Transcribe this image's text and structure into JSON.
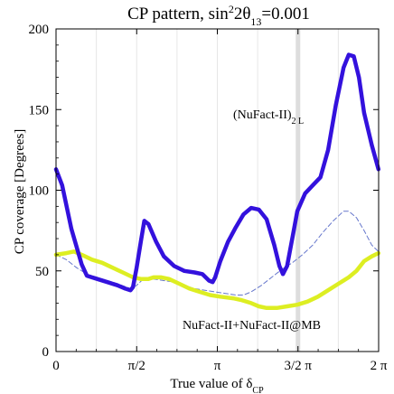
{
  "chart_data": {
    "type": "line",
    "title_main": "CP pattern, sin",
    "title_sup": "2",
    "title_mid": "2θ",
    "title_sub": "13",
    "title_end": "=0.001",
    "xlabel_main": "True value of δ",
    "xlabel_sub": "CP",
    "ylabel": "CP coverage [Degrees]",
    "xlim": [
      0,
      6.2832
    ],
    "ylim": [
      0,
      200
    ],
    "grid": false,
    "y_ticks": [
      {
        "value": 0,
        "label": "0"
      },
      {
        "value": 50,
        "label": "50"
      },
      {
        "value": 100,
        "label": "100"
      },
      {
        "value": 150,
        "label": "150"
      },
      {
        "value": 200,
        "label": "200"
      }
    ],
    "x_ticks": [
      {
        "value": 0,
        "label": "0"
      },
      {
        "value": 1.5708,
        "label": "π/2"
      },
      {
        "value": 3.1416,
        "label": "π"
      },
      {
        "value": 4.7124,
        "label": "3/2 π"
      },
      {
        "value": 6.2832,
        "label": "2 π"
      }
    ],
    "x_guides": [
      0.7854,
      1.5708,
      2.3562,
      3.1416,
      3.927,
      4.7124,
      5.4978
    ],
    "highlight_x": 4.7124,
    "series": [
      {
        "key": "nufact2_2l",
        "name_main": "(NuFact-II)",
        "name_sub": "2 L",
        "color": "#3311dd",
        "style": "thick",
        "points": [
          [
            0,
            113
          ],
          [
            0.12,
            103
          ],
          [
            0.3,
            76
          ],
          [
            0.5,
            54
          ],
          [
            0.6,
            47
          ],
          [
            0.8,
            45
          ],
          [
            1.0,
            43
          ],
          [
            1.2,
            41
          ],
          [
            1.35,
            39
          ],
          [
            1.45,
            38
          ],
          [
            1.5,
            40
          ],
          [
            1.57,
            52
          ],
          [
            1.65,
            68
          ],
          [
            1.72,
            81
          ],
          [
            1.8,
            79
          ],
          [
            1.95,
            68
          ],
          [
            2.1,
            59
          ],
          [
            2.3,
            53
          ],
          [
            2.5,
            50
          ],
          [
            2.7,
            49
          ],
          [
            2.85,
            48
          ],
          [
            2.98,
            44
          ],
          [
            3.05,
            43
          ],
          [
            3.1,
            46
          ],
          [
            3.2,
            56
          ],
          [
            3.35,
            68
          ],
          [
            3.5,
            77
          ],
          [
            3.65,
            85
          ],
          [
            3.8,
            89
          ],
          [
            3.95,
            88
          ],
          [
            4.1,
            82
          ],
          [
            4.25,
            66
          ],
          [
            4.35,
            53
          ],
          [
            4.42,
            48
          ],
          [
            4.5,
            53
          ],
          [
            4.6,
            70
          ],
          [
            4.7,
            87
          ],
          [
            4.85,
            98
          ],
          [
            5.0,
            103
          ],
          [
            5.15,
            108
          ],
          [
            5.3,
            125
          ],
          [
            5.45,
            153
          ],
          [
            5.6,
            176
          ],
          [
            5.7,
            184
          ],
          [
            5.8,
            183
          ],
          [
            5.9,
            170
          ],
          [
            6.0,
            148
          ],
          [
            6.15,
            128
          ],
          [
            6.28,
            113
          ]
        ]
      },
      {
        "key": "combined",
        "name_main": "NuFact-II+NuFact-II@MB",
        "name_sub": "",
        "color": "#ddee22",
        "style": "thick",
        "points": [
          [
            0,
            60
          ],
          [
            0.2,
            61
          ],
          [
            0.35,
            62
          ],
          [
            0.5,
            60
          ],
          [
            0.7,
            57
          ],
          [
            0.9,
            55
          ],
          [
            1.1,
            52
          ],
          [
            1.3,
            49
          ],
          [
            1.5,
            46
          ],
          [
            1.65,
            45
          ],
          [
            1.8,
            45
          ],
          [
            1.9,
            46
          ],
          [
            2.05,
            46
          ],
          [
            2.2,
            45
          ],
          [
            2.4,
            42
          ],
          [
            2.6,
            39
          ],
          [
            2.8,
            37
          ],
          [
            3.0,
            35
          ],
          [
            3.2,
            34
          ],
          [
            3.45,
            33
          ],
          [
            3.6,
            32
          ],
          [
            3.8,
            30
          ],
          [
            3.95,
            28
          ],
          [
            4.1,
            27
          ],
          [
            4.3,
            27
          ],
          [
            4.5,
            28
          ],
          [
            4.7,
            29
          ],
          [
            4.9,
            31
          ],
          [
            5.1,
            34
          ],
          [
            5.3,
            38
          ],
          [
            5.5,
            42
          ],
          [
            5.7,
            46
          ],
          [
            5.85,
            50
          ],
          [
            6.0,
            56
          ],
          [
            6.15,
            59
          ],
          [
            6.28,
            61
          ]
        ]
      },
      {
        "key": "reference",
        "name_main": "",
        "name_sub": "",
        "color": "#6677cc",
        "style": "dashed",
        "points": [
          [
            0,
            60
          ],
          [
            0.2,
            57
          ],
          [
            0.4,
            52
          ],
          [
            0.6,
            48
          ],
          [
            0.8,
            46
          ],
          [
            1.0,
            44
          ],
          [
            1.2,
            42
          ],
          [
            1.45,
            39
          ],
          [
            1.57,
            41
          ],
          [
            1.7,
            45
          ],
          [
            1.9,
            45
          ],
          [
            2.1,
            44
          ],
          [
            2.3,
            43
          ],
          [
            2.5,
            41
          ],
          [
            2.7,
            39
          ],
          [
            2.9,
            38
          ],
          [
            3.1,
            37
          ],
          [
            3.3,
            36
          ],
          [
            3.5,
            35
          ],
          [
            3.65,
            35
          ],
          [
            3.8,
            37
          ],
          [
            4.0,
            41
          ],
          [
            4.2,
            46
          ],
          [
            4.4,
            51
          ],
          [
            4.6,
            55
          ],
          [
            4.8,
            60
          ],
          [
            5.0,
            66
          ],
          [
            5.2,
            74
          ],
          [
            5.4,
            81
          ],
          [
            5.6,
            87
          ],
          [
            5.7,
            87
          ],
          [
            5.85,
            83
          ],
          [
            6.0,
            75
          ],
          [
            6.15,
            66
          ],
          [
            6.28,
            62
          ]
        ]
      }
    ]
  }
}
